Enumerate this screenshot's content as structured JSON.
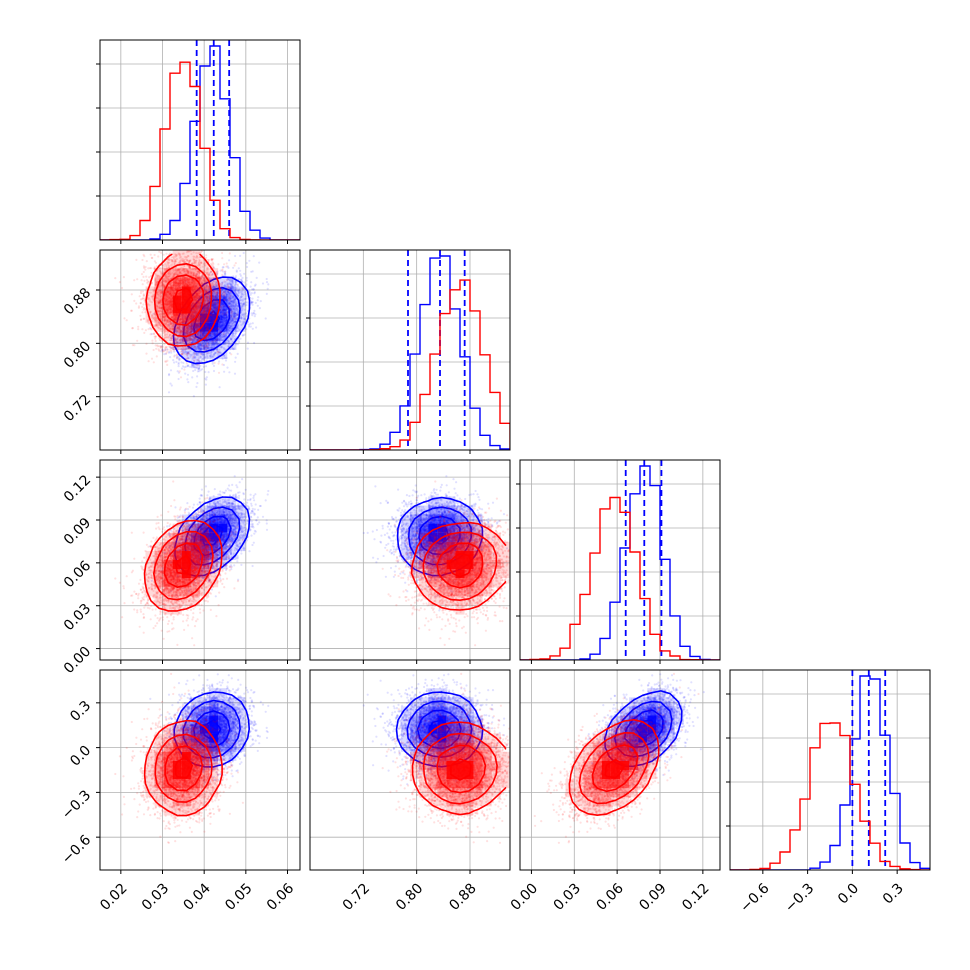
{
  "chart_data": {
    "type": "corner",
    "colors": {
      "blue": "#0000ff",
      "red": "#ff0000",
      "grid": "#b0b0b0"
    },
    "parameters": [
      {
        "range": [
          0.015,
          0.063
        ],
        "ticks": [
          0.02,
          0.03,
          0.04,
          0.05,
          0.06
        ],
        "tick_labels": [
          "0.02",
          "0.03",
          "0.04",
          "0.05",
          "0.06"
        ]
      },
      {
        "range": [
          0.64,
          0.94
        ],
        "ticks": [
          0.72,
          0.8,
          0.88
        ],
        "tick_labels": [
          "0.72",
          "0.80",
          "0.88"
        ]
      },
      {
        "range": [
          -0.008,
          0.132
        ],
        "ticks": [
          0.0,
          0.03,
          0.06,
          0.09,
          0.12
        ],
        "tick_labels": [
          "0.00",
          "0.03",
          "0.06",
          "0.09",
          "0.12"
        ]
      },
      {
        "range": [
          -0.82,
          0.52
        ],
        "ticks": [
          -0.6,
          -0.3,
          0.0,
          0.3
        ],
        "tick_labels": [
          "−0.6",
          "−0.3",
          "0.0",
          "0.3"
        ]
      }
    ],
    "series": [
      {
        "color": "blue",
        "mean": [
          0.042,
          0.835,
          0.079,
          0.12
        ],
        "sd": [
          0.0041,
          0.03,
          0.0125,
          0.115
        ],
        "corr": [
          [
            1,
            0.45,
            0.45,
            0.15
          ],
          [
            0.45,
            1,
            0.05,
            0.0
          ],
          [
            0.45,
            0.05,
            1,
            0.45
          ],
          [
            0.15,
            0.0,
            0.45,
            1
          ]
        ],
        "quantiles": [
          [
            0.0382,
            0.0423,
            0.046
          ],
          [
            0.787,
            0.835,
            0.872
          ],
          [
            0.066,
            0.079,
            0.091
          ],
          [
            0.0,
            0.11,
            0.22
          ]
        ]
      },
      {
        "color": "red",
        "mean": [
          0.035,
          0.865,
          0.058,
          -0.14
        ],
        "sd": [
          0.0042,
          0.035,
          0.015,
          0.15
        ],
        "corr": [
          [
            1,
            0.05,
            0.3,
            0.05
          ],
          [
            0.05,
            1,
            0.05,
            0.0
          ],
          [
            0.3,
            0.05,
            1,
            0.45
          ],
          [
            0.05,
            0.0,
            0.45,
            1
          ]
        ]
      }
    ]
  }
}
